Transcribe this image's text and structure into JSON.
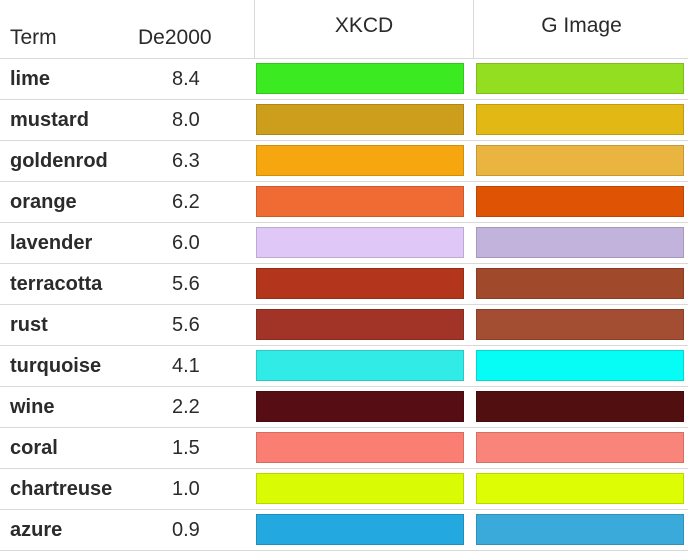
{
  "header": {
    "term": "Term",
    "de2000": "De2000",
    "xkcd": "XKCD",
    "g_image": "G Image"
  },
  "rows": [
    {
      "term": "lime",
      "de": "8.4",
      "xkcd_color": "#3cea22",
      "g_color": "#94de22"
    },
    {
      "term": "mustard",
      "de": "8.0",
      "xkcd_color": "#cc9e1c",
      "g_color": "#e1b814"
    },
    {
      "term": "goldenrod",
      "de": "6.3",
      "xkcd_color": "#f6a710",
      "g_color": "#eab440"
    },
    {
      "term": "orange",
      "de": "6.2",
      "xkcd_color": "#f06a33",
      "g_color": "#df5305"
    },
    {
      "term": "lavender",
      "de": "6.0",
      "xkcd_color": "#dfc8f8",
      "g_color": "#c2b3dd"
    },
    {
      "term": "terracotta",
      "de": "5.6",
      "xkcd_color": "#b3351b",
      "g_color": "#a1492b"
    },
    {
      "term": "rust",
      "de": "5.6",
      "xkcd_color": "#a23427",
      "g_color": "#a34d32"
    },
    {
      "term": "turquoise",
      "de": "4.1",
      "xkcd_color": "#31ece6",
      "g_color": "#05fdf5"
    },
    {
      "term": "wine",
      "de": "2.2",
      "xkcd_color": "#560e14",
      "g_color": "#520f10"
    },
    {
      "term": "coral",
      "de": "1.5",
      "xkcd_color": "#fb7e72",
      "g_color": "#f8847a"
    },
    {
      "term": "chartreuse",
      "de": "1.0",
      "xkcd_color": "#d9fc04",
      "g_color": "#dcfd04"
    },
    {
      "term": "azure",
      "de": "0.9",
      "xkcd_color": "#23a8e0",
      "g_color": "#3aaada"
    }
  ]
}
